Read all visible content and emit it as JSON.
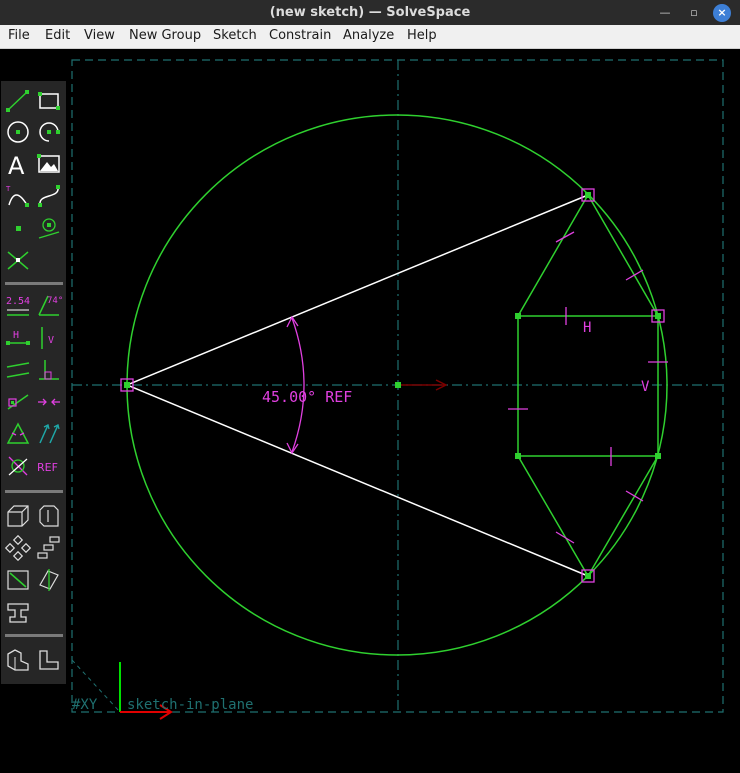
{
  "window": {
    "title": "(new sketch) — SolveSpace"
  },
  "menu": [
    "File",
    "Edit",
    "View",
    "New Group",
    "Sketch",
    "Constrain",
    "Analyze",
    "Help"
  ],
  "canvas": {
    "angle_label": "45.00° REF",
    "horizontal_label": "H",
    "vertical_label": "V",
    "workplane_label": "#XY",
    "status_label": "sketch-in-plane"
  },
  "toolbar": {
    "dimension_label": "2.54",
    "angle_tool_label": "74°",
    "h_label": "H",
    "v_label": "V",
    "ref_label": "REF"
  },
  "colors": {
    "sketch": "#2fd02f",
    "construction_white": "#ffffff",
    "constraint": "#e040e0",
    "workplane": "#1f7070",
    "background": "#000000",
    "toolbar_bg": "#262626"
  }
}
